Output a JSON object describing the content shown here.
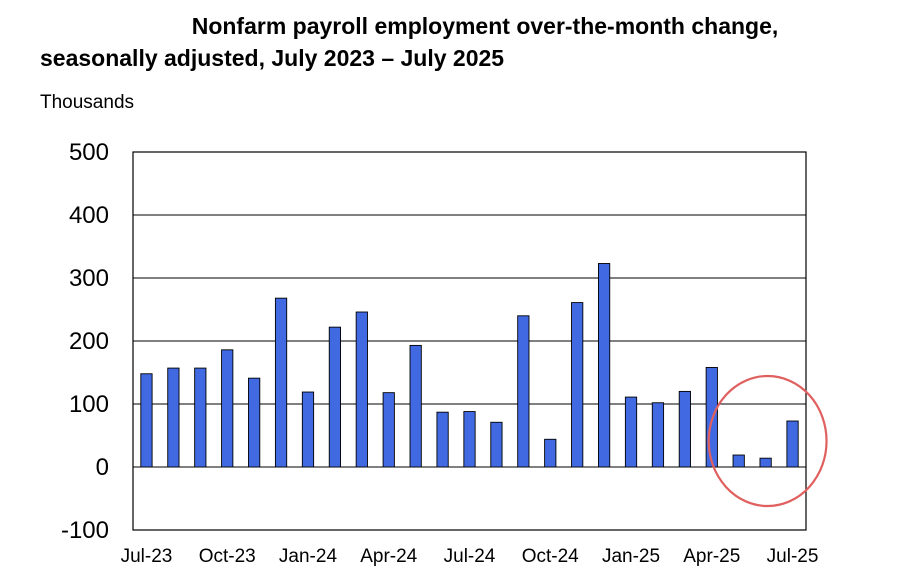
{
  "chart_data": {
    "type": "bar",
    "title_line1": "Nonfarm payroll employment over-the-month change,",
    "title_line2": "seasonally adjusted, July 2023 – July 2025",
    "ylabel": "Thousands",
    "xlabel": "",
    "ylim": [
      -100,
      500
    ],
    "yticks": [
      -100,
      0,
      100,
      200,
      300,
      400,
      500
    ],
    "grid": true,
    "categories": [
      "Jul-23",
      "Aug-23",
      "Sep-23",
      "Oct-23",
      "Nov-23",
      "Dec-23",
      "Jan-24",
      "Feb-24",
      "Mar-24",
      "Apr-24",
      "May-24",
      "Jun-24",
      "Jul-24",
      "Aug-24",
      "Sep-24",
      "Oct-24",
      "Nov-24",
      "Dec-24",
      "Jan-25",
      "Feb-25",
      "Mar-25",
      "Apr-25",
      "May-25",
      "Jun-25",
      "Jul-25"
    ],
    "xtick_labels": [
      "Jul-23",
      "Oct-23",
      "Jan-24",
      "Apr-24",
      "Jul-24",
      "Oct-24",
      "Jan-25",
      "Apr-25",
      "Jul-25"
    ],
    "values": [
      148,
      157,
      157,
      186,
      141,
      268,
      119,
      222,
      246,
      118,
      193,
      87,
      88,
      71,
      240,
      44,
      261,
      323,
      111,
      102,
      120,
      158,
      19,
      14,
      73
    ],
    "bar_color": "#4169e1",
    "highlight": {
      "shape": "ellipse",
      "color": "#e06060",
      "covers": [
        "May-25",
        "Jun-25",
        "Jul-25"
      ]
    }
  }
}
